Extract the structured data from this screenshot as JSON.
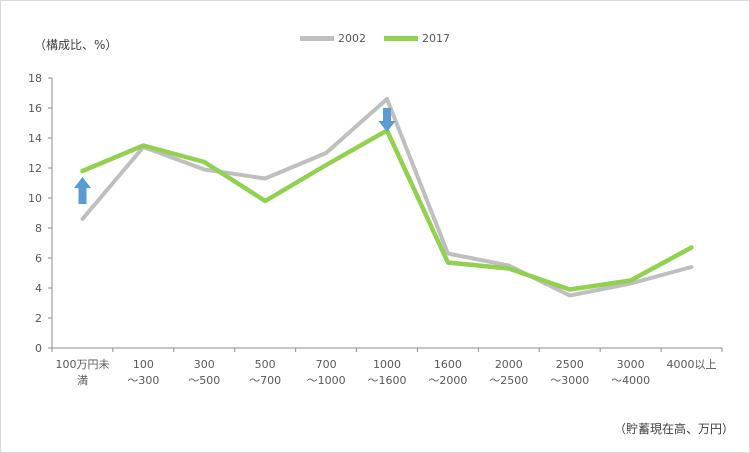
{
  "chart_data": {
    "type": "line",
    "ylabel": "（構成比、%）",
    "xlabel": "（貯蓄現在高、万円）",
    "ylim": [
      0,
      18
    ],
    "yticks": [
      0,
      2,
      4,
      6,
      8,
      10,
      12,
      14,
      16,
      18
    ],
    "categories": [
      [
        "100万円未",
        "満"
      ],
      [
        "100",
        "～300"
      ],
      [
        "300",
        "～500"
      ],
      [
        "500",
        "～700"
      ],
      [
        "700",
        "～1000"
      ],
      [
        "1000",
        "～1600"
      ],
      [
        "1600",
        "～2000"
      ],
      [
        "2000",
        "～2500"
      ],
      [
        "2500",
        "～3000"
      ],
      [
        "3000",
        "～4000"
      ],
      [
        "4000以上"
      ]
    ],
    "series": [
      {
        "name": "2002",
        "color": "#bfbfbf",
        "values": [
          8.6,
          13.4,
          11.9,
          11.3,
          13.0,
          16.6,
          6.3,
          5.5,
          3.5,
          4.3,
          5.4
        ]
      },
      {
        "name": "2017",
        "color": "#92d050",
        "values": [
          11.8,
          13.5,
          12.4,
          9.8,
          12.2,
          14.5,
          5.7,
          5.3,
          3.9,
          4.5,
          6.7
        ]
      }
    ],
    "annotations": [
      {
        "type": "arrow-up",
        "category_index": 0,
        "from": 9.6,
        "to": 11.4,
        "color": "#5b9bd5"
      },
      {
        "type": "arrow-down",
        "category_index": 5,
        "from": 16.0,
        "to": 14.4,
        "color": "#5b9bd5"
      }
    ],
    "legend_position": "top-center",
    "grid": false
  }
}
